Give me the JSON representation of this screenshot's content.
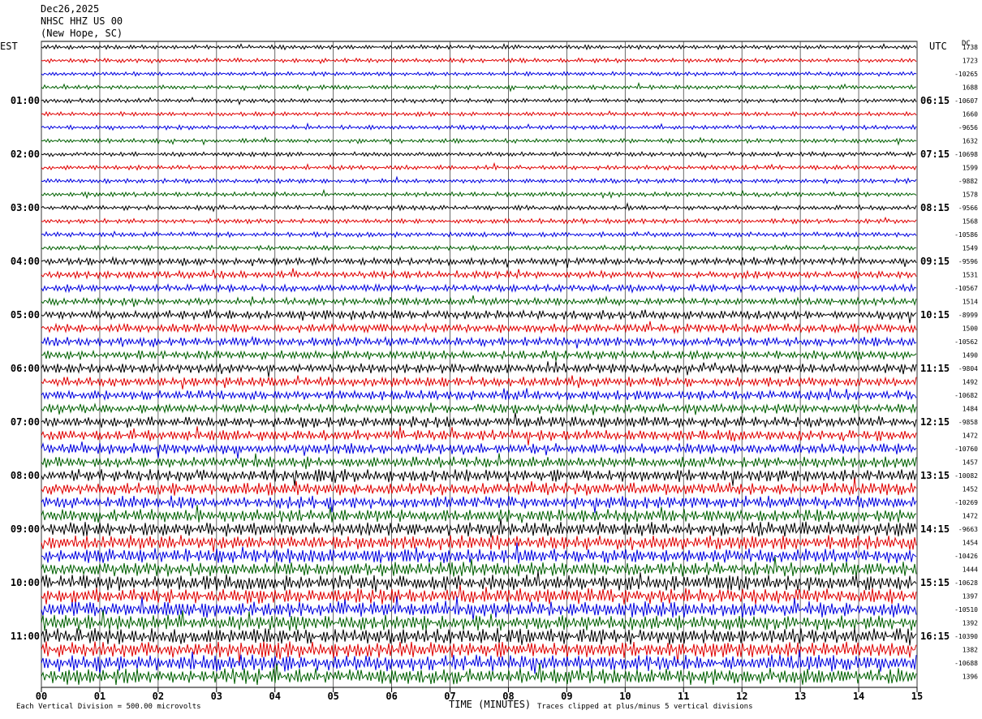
{
  "header": {
    "date": "Dec26,2025",
    "station": "NHSC HHZ US 00",
    "location": "(New Hope, SC)"
  },
  "labels": {
    "left_zone": "EST",
    "right_zone": "UTC",
    "dc_heading": "DC"
  },
  "footer": {
    "scale_note": "Each Vertical Division =  500.00 microvolts",
    "clip_note": "Traces clipped at plus/minus 5 vertical divisions"
  },
  "chart_data": {
    "type": "line",
    "title": "",
    "xlabel": "TIME (MINUTES)",
    "ylabel": "",
    "x_ticks": [
      "00",
      "01",
      "02",
      "03",
      "04",
      "05",
      "06",
      "07",
      "08",
      "09",
      "10",
      "11",
      "12",
      "13",
      "14",
      "15"
    ],
    "xlim": [
      0,
      15
    ],
    "grid": "vertical lines at each minute",
    "trace_colors": [
      "#000000",
      "#e00000",
      "#0000e0",
      "#006000"
    ],
    "trace_minutes": 15,
    "trace_count": 48,
    "left_time_labels": [
      "01:00",
      "02:00",
      "03:00",
      "04:00",
      "05:00",
      "06:00",
      "07:00",
      "08:00",
      "09:00",
      "10:00",
      "11:00"
    ],
    "right_time_labels": [
      "06:15",
      "07:15",
      "08:15",
      "09:15",
      "10:15",
      "11:15",
      "12:15",
      "13:15",
      "14:15",
      "15:15",
      "16:15"
    ],
    "dc_offsets": [
      "1738",
      "1723",
      "-10265",
      "1688",
      "-10607",
      "1660",
      "-9656",
      "1632",
      "-10698",
      "1599",
      "-9882",
      "1578",
      "-9566",
      "1568",
      "-10586",
      "1549",
      "-9596",
      "1531",
      "-10567",
      "1514",
      "-8999",
      "1500",
      "-10562",
      "1490",
      "-9804",
      "1492",
      "-10682",
      "1484",
      "-9858",
      "1472",
      "-10760",
      "1457",
      "-10082",
      "1452",
      "-10269",
      "1472",
      "-9663",
      "1454",
      "-10426",
      "1444",
      "-10628",
      "1397",
      "-10510",
      "1392",
      "-10390",
      "1382",
      "-10688",
      "1396"
    ],
    "amplitude_by_hour_divisions": [
      0.7,
      0.7,
      0.75,
      0.8,
      1.2,
      1.5,
      1.6,
      1.8,
      2.1,
      2.4,
      2.6,
      2.7
    ]
  }
}
